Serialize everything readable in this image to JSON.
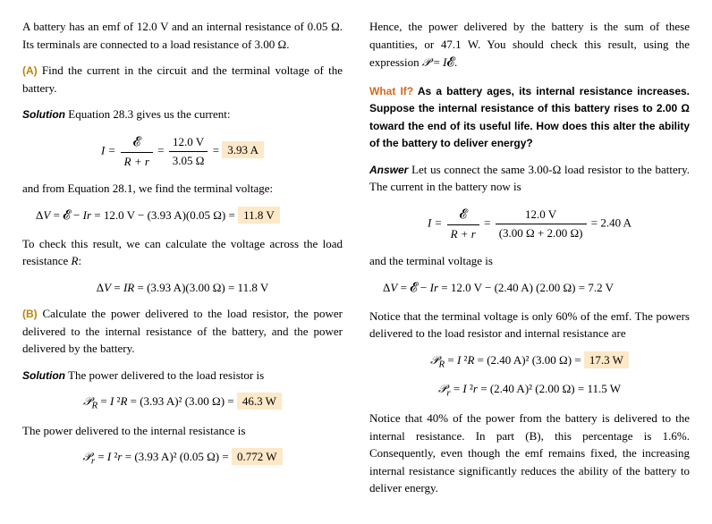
{
  "col1": {
    "intro": "A battery has an emf of 12.0 V and an internal resistance of 0.05 Ω. Its terminals are connected to a load resistance of 3.00 Ω.",
    "partA_label": "(A)",
    "partA_text": " Find the current in the circuit and the terminal voltage of the battery.",
    "sol_label": "Solution",
    "solA_text": " Equation 28.3 gives us the current:",
    "eq1_lhs": "I = ",
    "eq1_num1": "𝓔",
    "eq1_den1": "R + r",
    "eq1_mid": " = ",
    "eq1_num2": "12.0 V",
    "eq1_den2": "3.05 Ω",
    "eq1_eq": " = ",
    "eq1_result": "3.93 A",
    "after_eq1": "and from Equation 28.1, we find the terminal voltage:",
    "eq2_text": "ΔV = 𝓔 − Ir = 12.0 V − (3.93 A)(0.05 Ω) = ",
    "eq2_result": "11.8 V",
    "check_text": "To check this result, we can calculate the voltage across the load resistance R:",
    "eq3_text": "ΔV = IR = (3.93 A)(3.00 Ω) = 11.8 V",
    "partB_label": "(B)",
    "partB_text": " Calculate the power delivered to the load resistor, the power delivered to the internal resistance of the battery, and the power delivered by the battery.",
    "solB_text": " The power delivered to the load resistor is",
    "eq4_lhs": "𝒫",
    "eq4_sub": "R",
    "eq4_text": " = I ²R = (3.93 A)² (3.00 Ω) = ",
    "eq4_result": "46.3 W",
    "after_eq4": "The power delivered to the internal resistance is",
    "eq5_lhs": "𝒫",
    "eq5_sub": "r",
    "eq5_text": " = I ²r = (3.93 A)² (0.05 Ω) = ",
    "eq5_result": "0.772 W"
  },
  "col2": {
    "hence": "Hence, the power delivered by the battery is the sum of these quantities, or 47.1 W. You should check this result, using the expression 𝒫 = I𝓔.",
    "whatif_label": "What If?",
    "whatif_text": " As a battery ages, its internal resistance increases. Suppose the internal resistance of this battery rises to 2.00 Ω toward the end of its useful life. How does this alter the ability of the battery to deliver energy?",
    "answer_label": "Answer",
    "answer_text": " Let us connect the same 3.00-Ω load resistor to the battery. The current in the battery now is",
    "eq6_lhs": "I = ",
    "eq6_num1": "𝓔",
    "eq6_den1": "R + r",
    "eq6_mid": " = ",
    "eq6_num2": "12.0 V",
    "eq6_den2": "(3.00 Ω + 2.00 Ω)",
    "eq6_result": " = 2.40 A",
    "tv_text": "and the terminal voltage is",
    "eq7_text": "ΔV = 𝓔 − Ir = 12.0 V − (2.40 A) (2.00 Ω) = 7.2 V",
    "notice1": "Notice that the terminal voltage is only 60% of the emf. The powers delivered to the load resistor and internal resistance are",
    "eq8_lhs": "𝒫",
    "eq8_sub": "R",
    "eq8_text": " = I ²R = (2.40 A)² (3.00 Ω) = ",
    "eq8_result": "17.3 W",
    "eq9_lhs": "𝒫",
    "eq9_sub": "r",
    "eq9_text": " = I ²r = (2.40 A)² (2.00 Ω) = 11.5 W",
    "notice2": "Notice that 40% of the power from the battery is delivered to the internal resistance. In part (B), this percentage is 1.6%. Consequently, even though the emf remains fixed, the increasing internal resistance significantly reduces the ability of the battery to deliver energy."
  }
}
